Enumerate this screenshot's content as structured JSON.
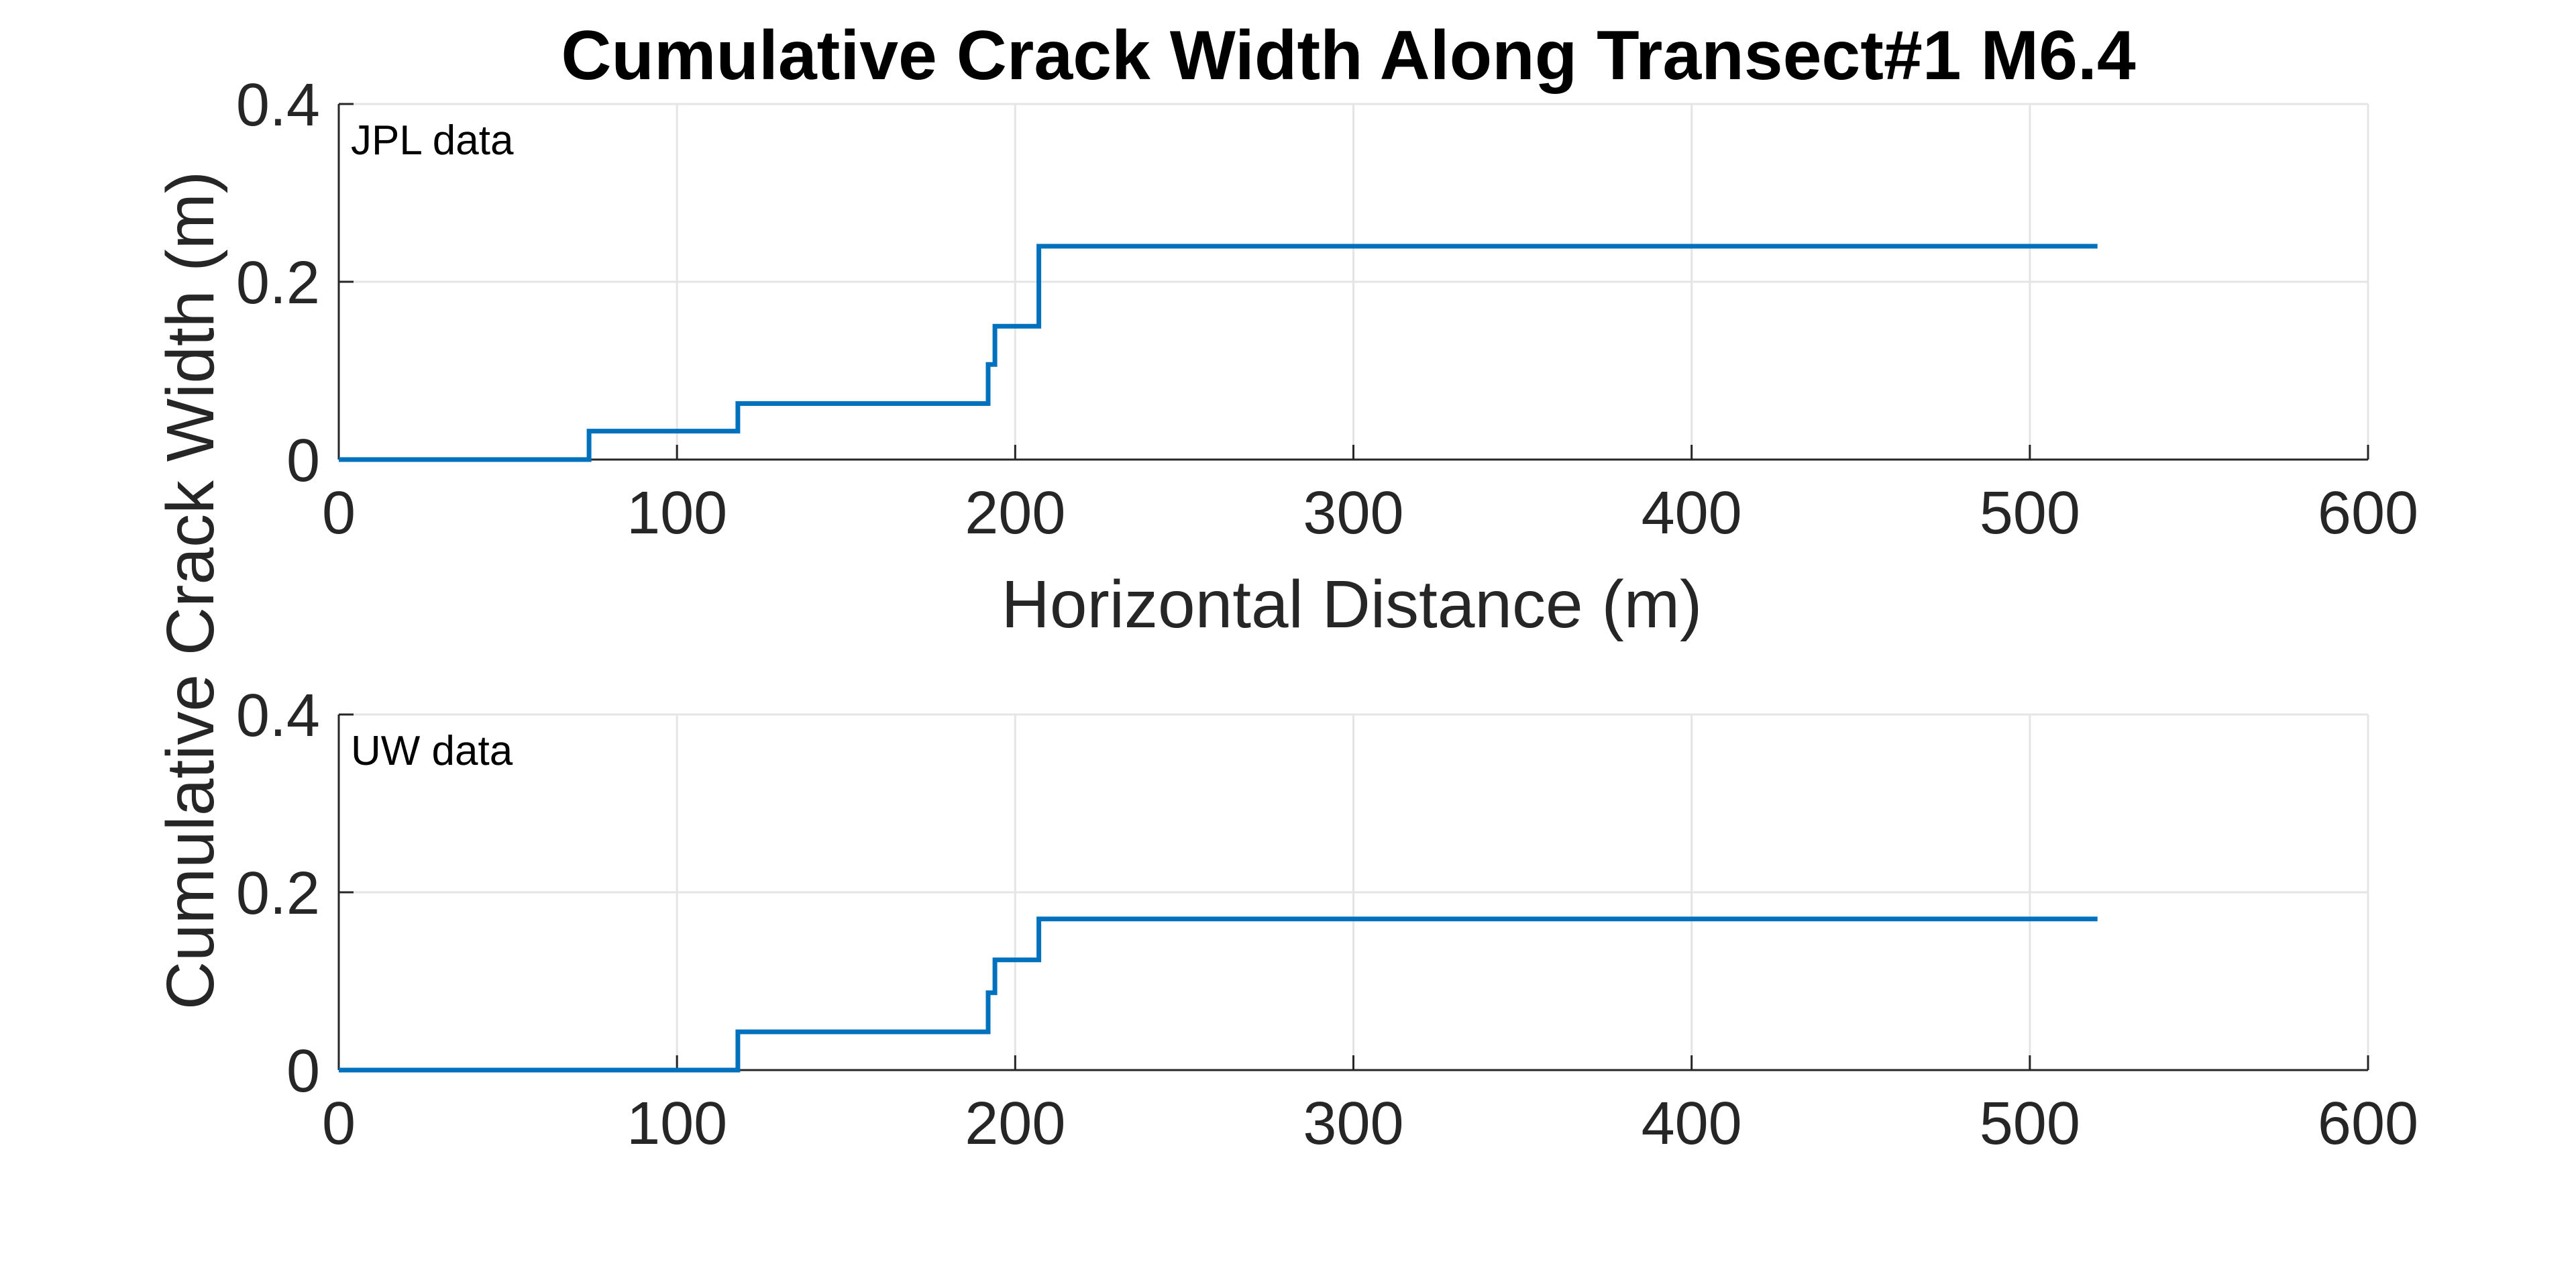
{
  "figure": {
    "title": "Cumulative Crack Width Along Transect#1 M6.4",
    "ylabel": "Cumulative Crack Width (m)",
    "xlabel": "Horizontal Distance (m)"
  },
  "colors": {
    "series": "#0072BD",
    "grid": "#e5e5e5",
    "axis": "#262626"
  },
  "chart_data": [
    {
      "type": "line",
      "step": true,
      "annotation": "JPL data",
      "xlabel": "Horizontal Distance (m)",
      "xlim": [
        0,
        600
      ],
      "ylim": [
        0,
        0.4
      ],
      "xticks": [
        0,
        100,
        200,
        300,
        400,
        500,
        600
      ],
      "yticks": [
        0,
        0.2,
        0.4
      ],
      "xtick_labels": [
        "0",
        "100",
        "200",
        "300",
        "400",
        "500",
        "600"
      ],
      "ytick_labels": [
        "0",
        "0.2",
        "0.4"
      ],
      "grid": true,
      "series": [
        {
          "x": [
            0,
            74,
            74,
            118,
            118,
            192,
            192,
            194,
            194,
            207,
            207,
            520
          ],
          "y": [
            0,
            0,
            0.032,
            0.032,
            0.063,
            0.063,
            0.107,
            0.107,
            0.15,
            0.15,
            0.24,
            0.24
          ]
        }
      ]
    },
    {
      "type": "line",
      "step": true,
      "annotation": "UW data",
      "xlabel": "",
      "xlim": [
        0,
        600
      ],
      "ylim": [
        0,
        0.4
      ],
      "xticks": [
        0,
        100,
        200,
        300,
        400,
        500,
        600
      ],
      "yticks": [
        0,
        0.2,
        0.4
      ],
      "xtick_labels": [
        "0",
        "100",
        "200",
        "300",
        "400",
        "500",
        "600"
      ],
      "ytick_labels": [
        "0",
        "0.2",
        "0.4"
      ],
      "grid": true,
      "series": [
        {
          "x": [
            0,
            118,
            118,
            192,
            192,
            194,
            194,
            207,
            207,
            520
          ],
          "y": [
            0,
            0,
            0.043,
            0.043,
            0.087,
            0.087,
            0.124,
            0.124,
            0.17,
            0.17
          ]
        }
      ]
    }
  ]
}
